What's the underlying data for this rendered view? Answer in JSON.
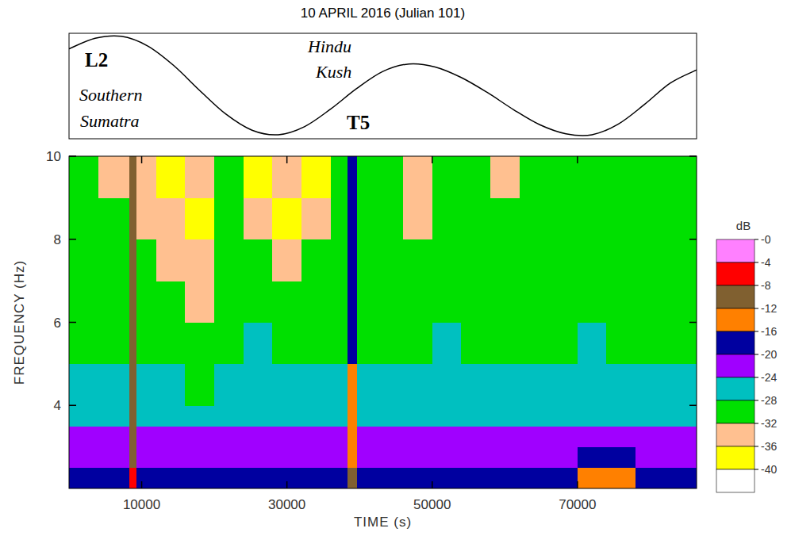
{
  "chart_data": {
    "type": "heatmap",
    "title": "10 APRIL 2016 (Julian 101)",
    "x_label": "TIME (s)",
    "y_label": "FREQUENCY (Hz)",
    "xlim": [
      0,
      86400
    ],
    "xticks": [
      10000,
      30000,
      50000,
      70000
    ],
    "ylim": [
      2,
      10
    ],
    "yticks": [
      4,
      6,
      8,
      10
    ],
    "x_edges": [
      0,
      4000,
      8300,
      9300,
      12000,
      16000,
      20000,
      24000,
      28000,
      32000,
      36000,
      38300,
      39600,
      42000,
      46000,
      50000,
      54000,
      58000,
      62000,
      66000,
      70000,
      74000,
      78000,
      82000,
      86400
    ],
    "y_edges": [
      2,
      2.5,
      3,
      3.5,
      4,
      5,
      6,
      7,
      8,
      9,
      10
    ],
    "z": [
      [
        -18,
        -18,
        -7,
        -17,
        -18,
        -19,
        -18,
        -18,
        -17,
        -18,
        -18,
        -11,
        -18,
        -19,
        -18,
        -18,
        -17,
        -18,
        -17,
        -17,
        -15,
        -14,
        -17,
        -18
      ],
      [
        -21,
        -21,
        -8,
        -21,
        -21,
        -22,
        -21,
        -22,
        -21,
        -21,
        -21,
        -12,
        -21,
        -22,
        -22,
        -21,
        -21,
        -22,
        -21,
        -21,
        -19,
        -19,
        -20,
        -21
      ],
      [
        -23,
        -23,
        -8,
        -23,
        -22,
        -23,
        -23,
        -23,
        -22,
        -23,
        -22,
        -12,
        -22,
        -23,
        -23,
        -23,
        -22,
        -23,
        -23,
        -22,
        -22,
        -21,
        -22,
        -23
      ],
      [
        -25,
        -26,
        -9,
        -25,
        -25,
        -26,
        -25,
        -25,
        -26,
        -25,
        -25,
        -13,
        -25,
        -25,
        -26,
        -25,
        -25,
        -25,
        -26,
        -25,
        -25,
        -25,
        -25,
        -25
      ],
      [
        -27,
        -27,
        -9,
        -27,
        -26,
        -29,
        -27,
        -26,
        -27,
        -26,
        -26,
        -14,
        -27,
        -26,
        -27,
        -26,
        -27,
        -26,
        -27,
        -27,
        -26,
        -26,
        -27,
        -27
      ],
      [
        -29,
        -29,
        -9,
        -29,
        -29,
        -30,
        -29,
        -27,
        -29,
        -29,
        -29,
        -16,
        -29,
        -29,
        -29,
        -27,
        -29,
        -29,
        -29,
        -29,
        -27,
        -29,
        -29,
        -29
      ],
      [
        -29,
        -30,
        -9,
        -30,
        -30,
        -33,
        -29,
        -29,
        -30,
        -30,
        -29,
        -17,
        -29,
        -29,
        -29,
        -29,
        -29,
        -29,
        -29,
        -28,
        -29,
        -29,
        -29,
        -29
      ],
      [
        -30,
        -30,
        -9,
        -31,
        -33,
        -34,
        -29,
        -30,
        -34,
        -31,
        -30,
        -17,
        -30,
        -29,
        -30,
        -29,
        -29,
        -30,
        -29,
        -29,
        -30,
        -29,
        -29,
        -30
      ],
      [
        -30,
        -31,
        -10,
        -33,
        -34,
        -37,
        -30,
        -34,
        -37,
        -34,
        -30,
        -18,
        -30,
        -29,
        -34,
        -30,
        -29,
        -31,
        -30,
        -29,
        -30,
        -29,
        -30,
        -29
      ],
      [
        -31,
        -33,
        -10,
        -34,
        -37,
        -33,
        -30,
        -37,
        -34,
        -37,
        -31,
        -18,
        -31,
        -30,
        -33,
        -29,
        -30,
        -33,
        -30,
        -29,
        -31,
        -30,
        -30,
        -31
      ]
    ],
    "colorbar": {
      "title": "dB",
      "range": [
        -44,
        0
      ],
      "ticks": [
        {
          "value": 0,
          "label": "-0"
        },
        -4,
        -8,
        -12,
        -16,
        -20,
        -24,
        -28,
        -32,
        -36,
        -40
      ],
      "colors": [
        "#ff80ff",
        "#ff0000",
        "#806030",
        "#ff8000",
        "#0000a0",
        "#a000ff",
        "#00c0c0",
        "#00e000",
        "#ffc090",
        "#ffff00",
        "#ffffff"
      ]
    },
    "tide": {
      "type": "line",
      "color": "#000000",
      "ylim": [
        -1.05,
        1.05
      ],
      "x": [
        0,
        3600,
        7200,
        10800,
        14400,
        18000,
        21600,
        25200,
        28800,
        32400,
        36000,
        39600,
        43200,
        46800,
        50400,
        54000,
        57600,
        61200,
        64800,
        68400,
        72000,
        75600,
        79200,
        82800,
        86400
      ],
      "values": [
        0.74,
        0.95,
        0.99,
        0.8,
        0.41,
        -0.09,
        -0.56,
        -0.88,
        -0.97,
        -0.81,
        -0.46,
        -0.05,
        0.29,
        0.44,
        0.38,
        0.17,
        -0.13,
        -0.47,
        -0.77,
        -0.95,
        -0.97,
        -0.76,
        -0.37,
        0.06,
        0.32
      ]
    },
    "annotations": [
      {
        "label": "L2",
        "description": "Southern Sumatra"
      },
      {
        "label": "T5",
        "description": "Hindu Kush"
      }
    ]
  }
}
